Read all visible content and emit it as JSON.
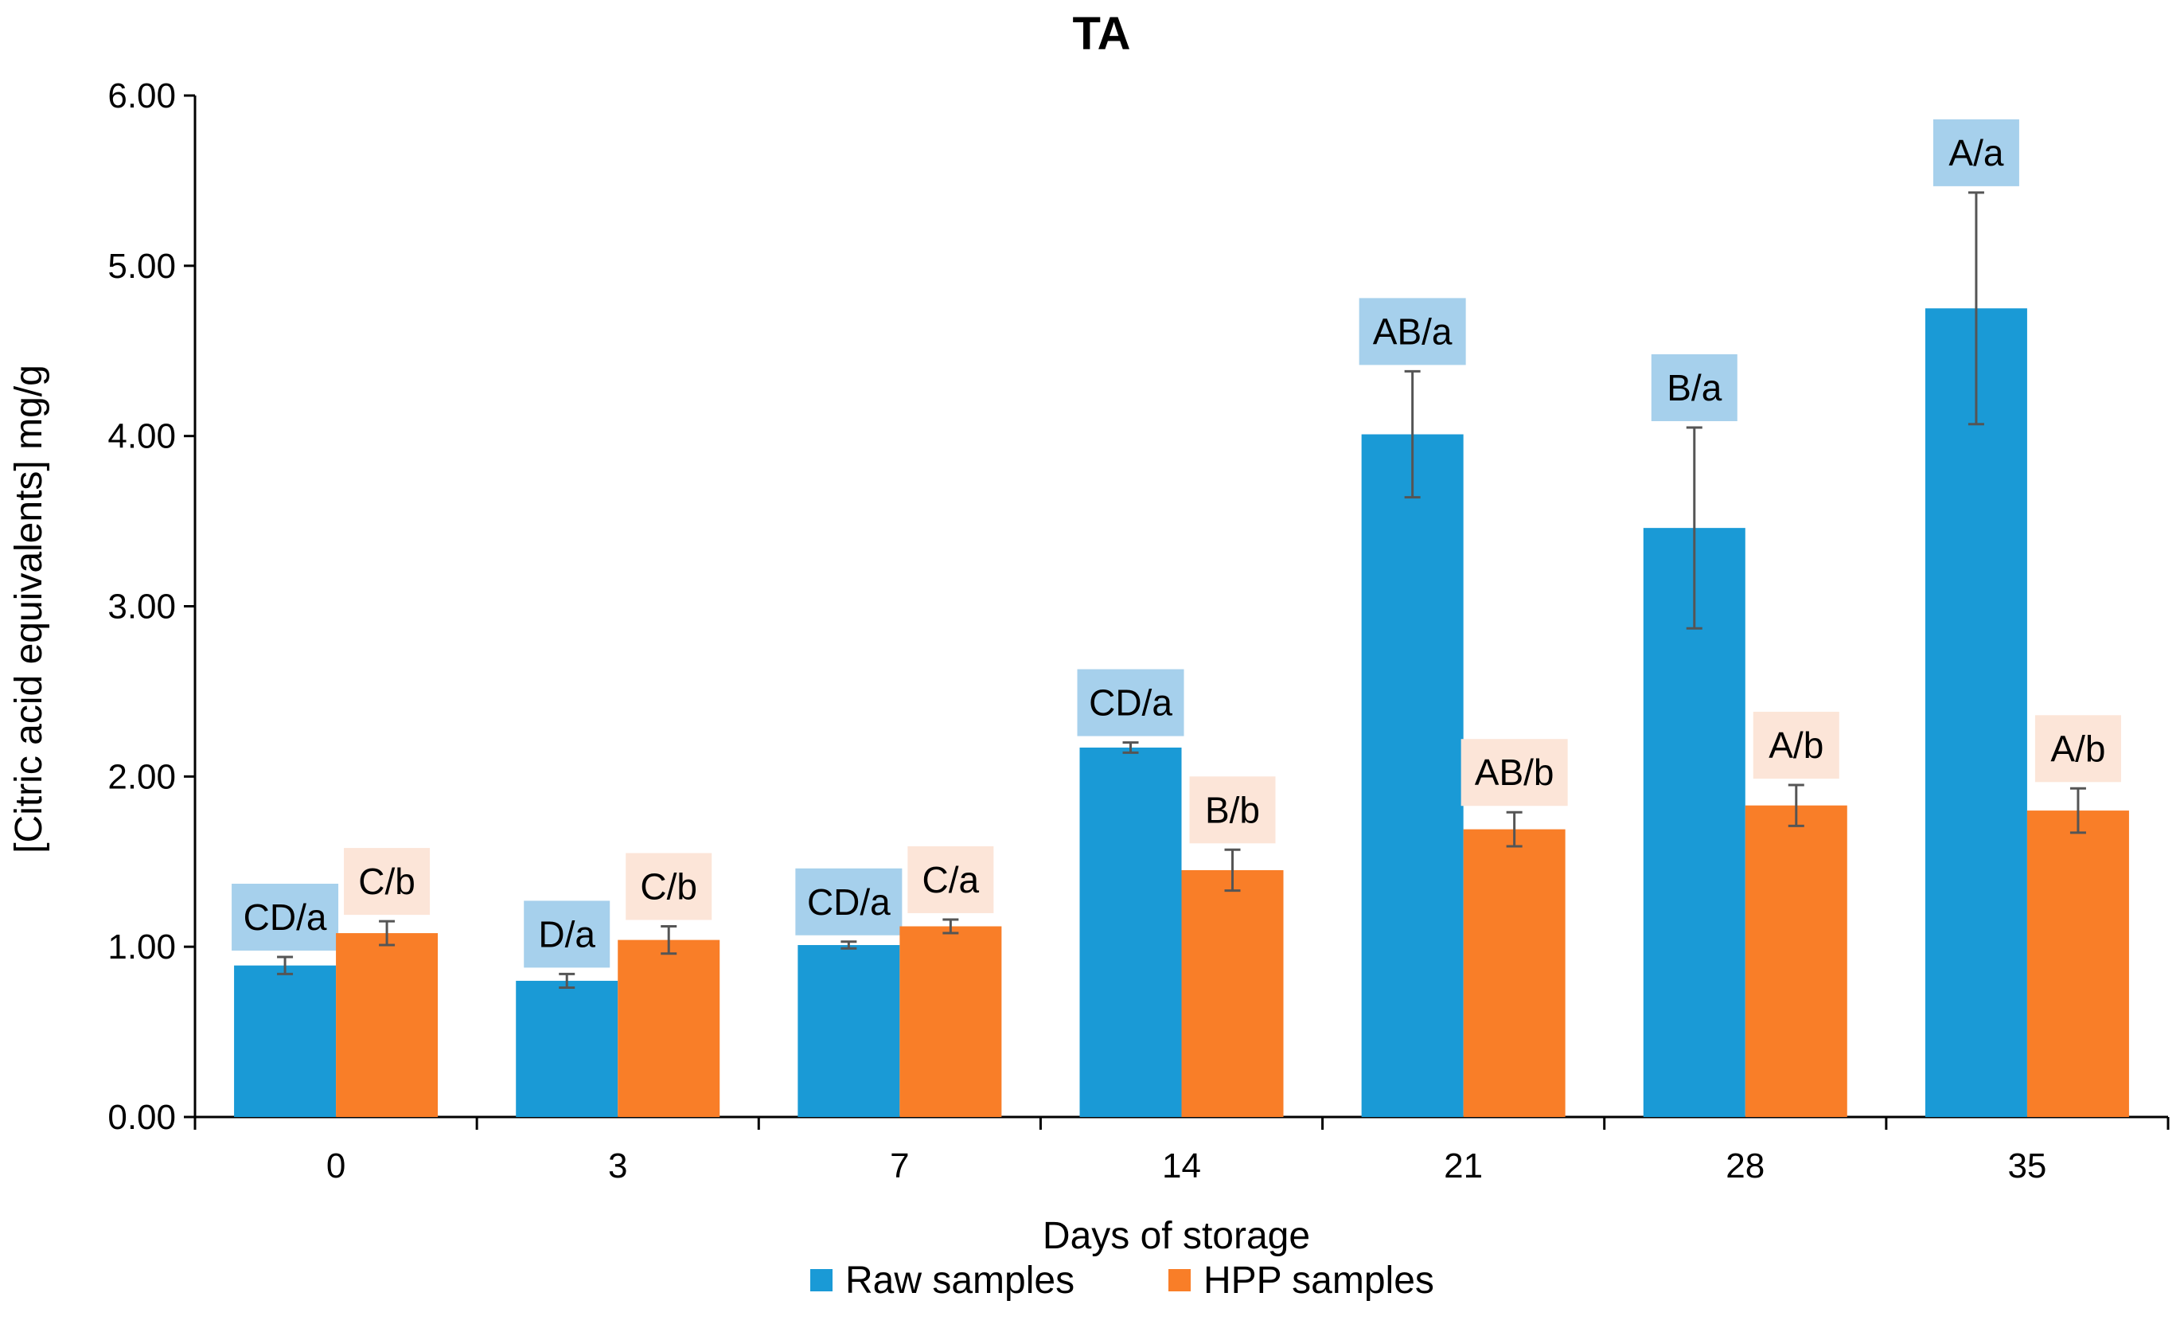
{
  "chart_data": {
    "type": "bar",
    "title": "TA",
    "xlabel": "Days of storage",
    "ylabel": "[Citric acid equivalents] mg/g",
    "ylim": [
      0,
      6
    ],
    "yticks": [
      "0.00",
      "1.00",
      "2.00",
      "3.00",
      "4.00",
      "5.00",
      "6.00"
    ],
    "ytick_values": [
      0,
      1,
      2,
      3,
      4,
      5,
      6
    ],
    "categories": [
      "0",
      "3",
      "7",
      "14",
      "21",
      "28",
      "35"
    ],
    "grid": false,
    "legend_position": "bottom-center",
    "series": [
      {
        "name": "Raw samples",
        "color": "#1a9ad6",
        "label_bg": "#a6d0ec",
        "values": [
          0.89,
          0.8,
          1.01,
          2.17,
          4.01,
          3.46,
          4.75
        ],
        "errors": [
          0.05,
          0.04,
          0.02,
          0.03,
          0.37,
          0.59,
          0.68
        ],
        "labels": [
          "CD/a",
          "D/a",
          "CD/a",
          "CD/a",
          "AB/a",
          "B/a",
          "A/a"
        ]
      },
      {
        "name": "HPP samples",
        "color": "#f97e28",
        "label_bg": "#fce5d8",
        "values": [
          1.08,
          1.04,
          1.12,
          1.45,
          1.69,
          1.83,
          1.8
        ],
        "errors": [
          0.07,
          0.08,
          0.04,
          0.12,
          0.1,
          0.12,
          0.13
        ],
        "labels": [
          "C/b",
          "C/b",
          "C/a",
          "B/b",
          "AB/b",
          "A/b",
          "A/b"
        ]
      }
    ]
  }
}
